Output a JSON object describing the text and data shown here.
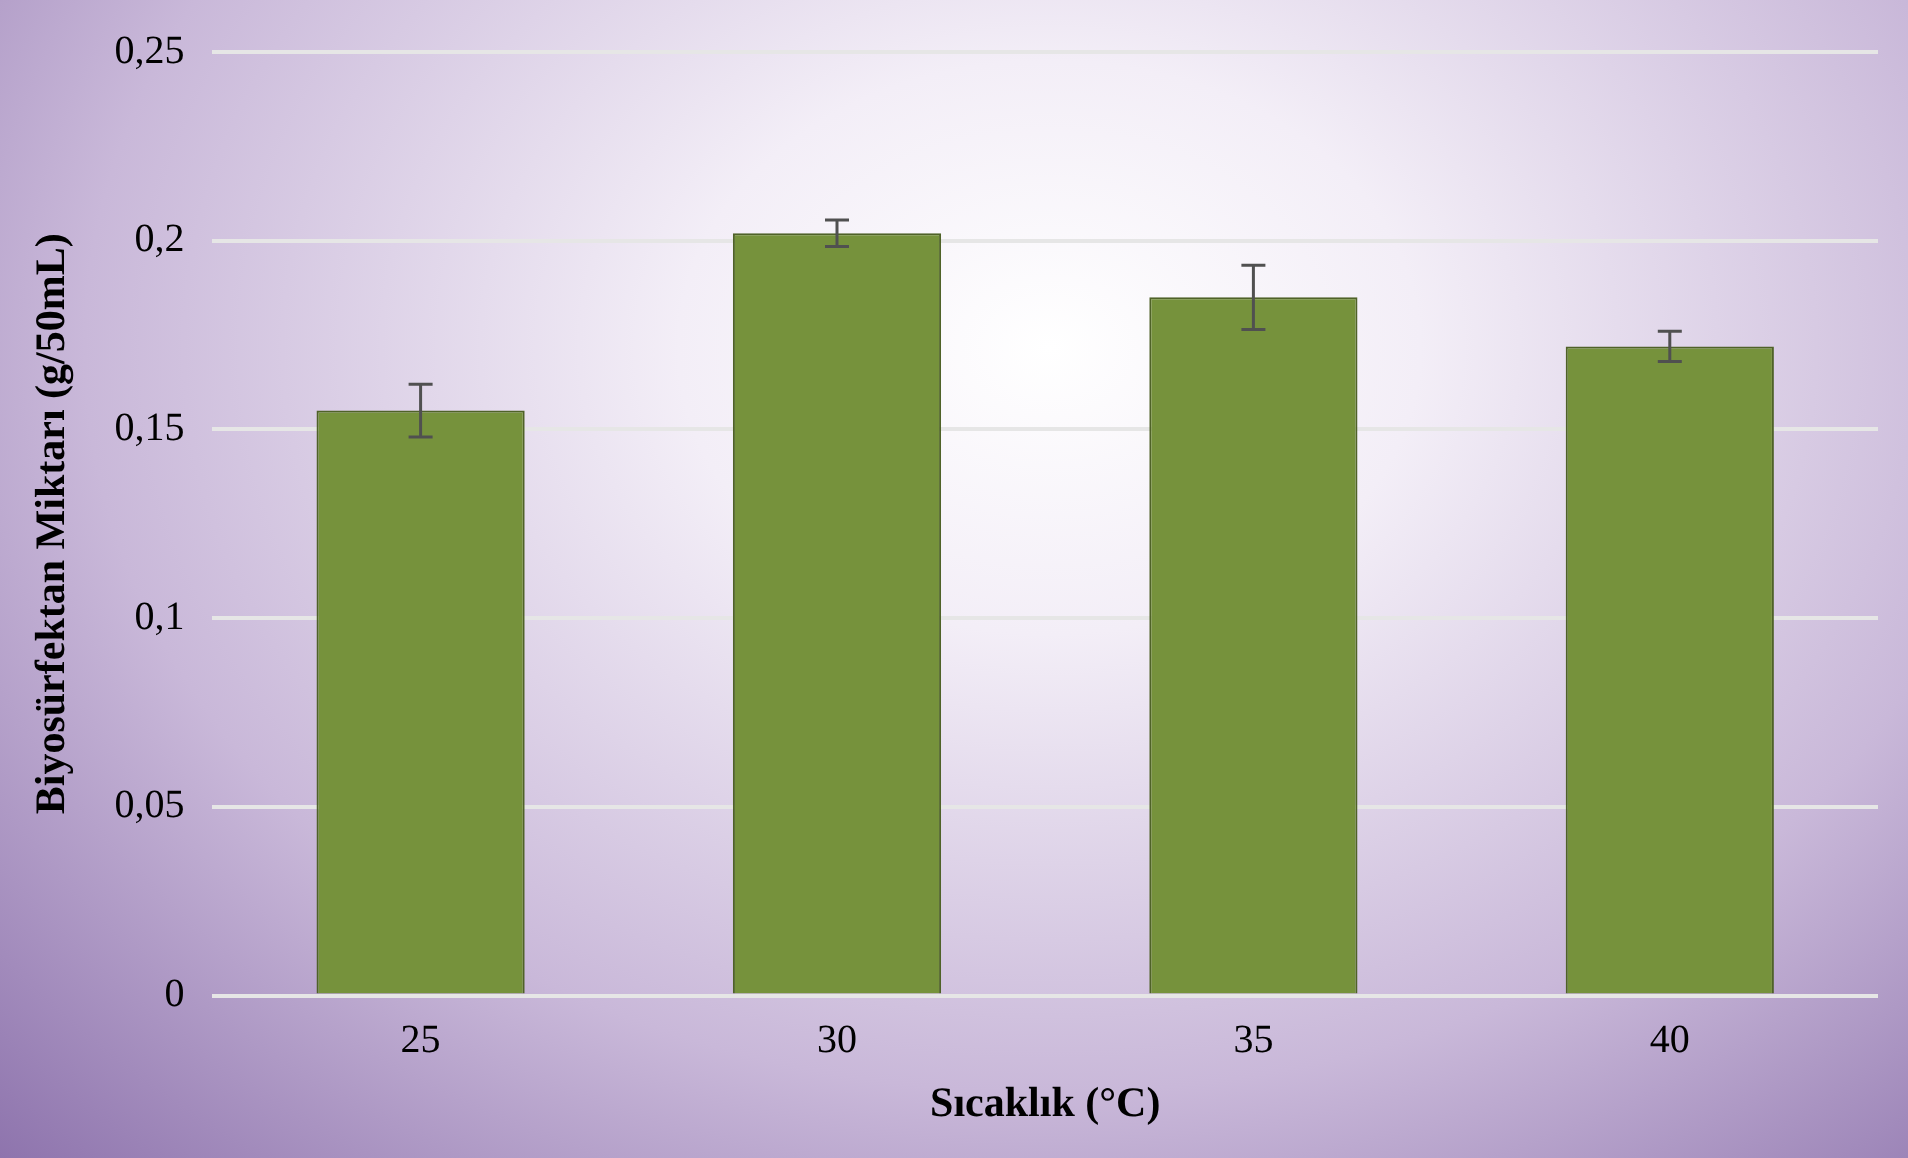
{
  "chart_data": {
    "type": "bar",
    "xlabel": "Sıcaklık (°C)",
    "ylabel": "Biyosürfektan Miktarı (g/50mL)",
    "categories": [
      "25",
      "30",
      "35",
      "40"
    ],
    "values": [
      0.155,
      0.202,
      0.185,
      0.172
    ],
    "errors": [
      0.007,
      0.0035,
      0.0085,
      0.004
    ],
    "color": "#76923c",
    "ylim": [
      0,
      0.25
    ],
    "yticks": [
      {
        "value": 0,
        "label": "0"
      },
      {
        "value": 0.05,
        "label": "0,05"
      },
      {
        "value": 0.1,
        "label": "0,1"
      },
      {
        "value": 0.15,
        "label": "0,15"
      },
      {
        "value": 0.2,
        "label": "0,2"
      },
      {
        "value": 0.25,
        "label": "0,25"
      }
    ],
    "grid": "y",
    "legend": false
  }
}
